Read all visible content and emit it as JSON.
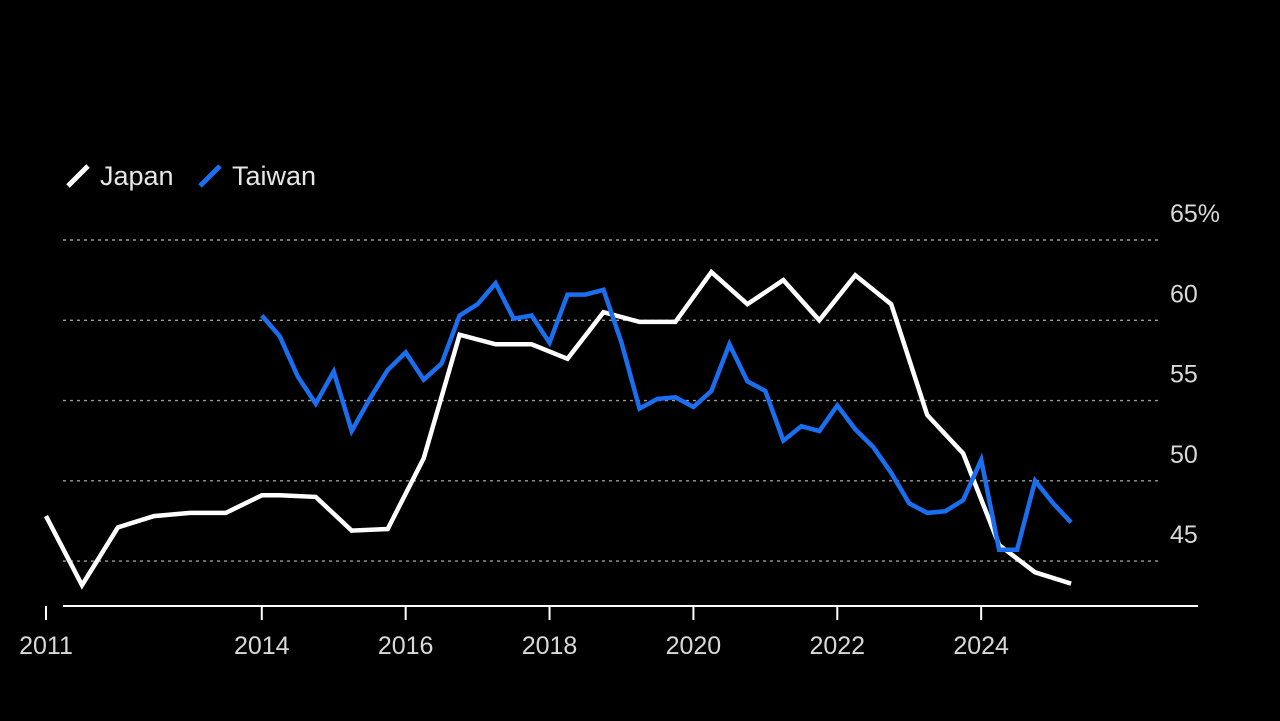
{
  "chart_data": {
    "type": "line",
    "title": "",
    "xlabel": "",
    "ylabel": "",
    "xlim": [
      2010.75,
      2026.5
    ],
    "ylim": [
      42.7,
      65
    ],
    "x_ticks": [
      {
        "value": 2011,
        "label": "2011"
      },
      {
        "value": 2014,
        "label": "2014"
      },
      {
        "value": 2016,
        "label": "2016"
      },
      {
        "value": 2018,
        "label": "2018"
      },
      {
        "value": 2020,
        "label": "2020"
      },
      {
        "value": 2022,
        "label": "2022"
      },
      {
        "value": 2024,
        "label": "2024"
      }
    ],
    "y_ticks": [
      {
        "value": 65,
        "label": "65%"
      },
      {
        "value": 60,
        "label": "60"
      },
      {
        "value": 55,
        "label": "55"
      },
      {
        "value": 50,
        "label": "50"
      },
      {
        "value": 45,
        "label": "45"
      }
    ],
    "grid": true,
    "legend": "top-left",
    "colors": {
      "background": "#000000",
      "japan": "#ffffff",
      "taiwan": "#1a6ff0",
      "grid": "#9a9a9a",
      "text": "#d9d9d9"
    },
    "series": [
      {
        "name": "Japan",
        "color": "#ffffff",
        "x": [
          2011.0,
          2011.5,
          2012.0,
          2012.5,
          2013.0,
          2013.5,
          2014.0,
          2014.25,
          2014.75,
          2015.25,
          2015.75,
          2016.25,
          2016.75,
          2017.25,
          2017.75,
          2018.25,
          2018.75,
          2019.25,
          2019.75,
          2020.25,
          2020.75,
          2021.25,
          2021.75,
          2022.25,
          2022.75,
          2023.25,
          2023.75,
          2024.25,
          2024.75,
          2025.25
        ],
        "values": [
          47.8,
          43.5,
          47.1,
          47.8,
          48.0,
          48.0,
          49.1,
          49.1,
          49.0,
          46.9,
          47.0,
          51.4,
          59.1,
          58.5,
          58.5,
          57.6,
          60.5,
          59.9,
          59.9,
          63.0,
          61.0,
          62.5,
          60.0,
          62.8,
          61.0,
          54.1,
          51.7,
          46.0,
          44.3,
          43.6
        ]
      },
      {
        "name": "Taiwan",
        "color": "#1a6ff0",
        "x": [
          2014.0,
          2014.25,
          2014.5,
          2014.75,
          2015.0,
          2015.25,
          2015.5,
          2015.75,
          2016.0,
          2016.25,
          2016.5,
          2016.75,
          2017.0,
          2017.25,
          2017.5,
          2017.75,
          2018.0,
          2018.25,
          2018.5,
          2018.75,
          2019.0,
          2019.25,
          2019.5,
          2019.75,
          2020.0,
          2020.25,
          2020.5,
          2020.75,
          2021.0,
          2021.25,
          2021.5,
          2021.75,
          2022.0,
          2022.25,
          2022.5,
          2022.75,
          2023.0,
          2023.25,
          2023.5,
          2023.75,
          2024.0,
          2024.25,
          2024.5,
          2024.75,
          2025.0,
          2025.25
        ],
        "values": [
          60.3,
          59.0,
          56.5,
          54.8,
          56.8,
          53.1,
          55.1,
          56.9,
          58.0,
          56.3,
          57.3,
          60.3,
          61.0,
          62.3,
          60.1,
          60.3,
          58.6,
          61.6,
          61.6,
          61.9,
          58.6,
          54.5,
          55.1,
          55.2,
          54.6,
          55.6,
          58.5,
          56.2,
          55.6,
          52.5,
          53.4,
          53.1,
          54.7,
          53.2,
          52.1,
          50.5,
          48.6,
          48.0,
          48.1,
          48.8,
          51.3,
          45.7,
          45.7,
          50.0,
          48.6,
          47.4
        ]
      }
    ]
  }
}
